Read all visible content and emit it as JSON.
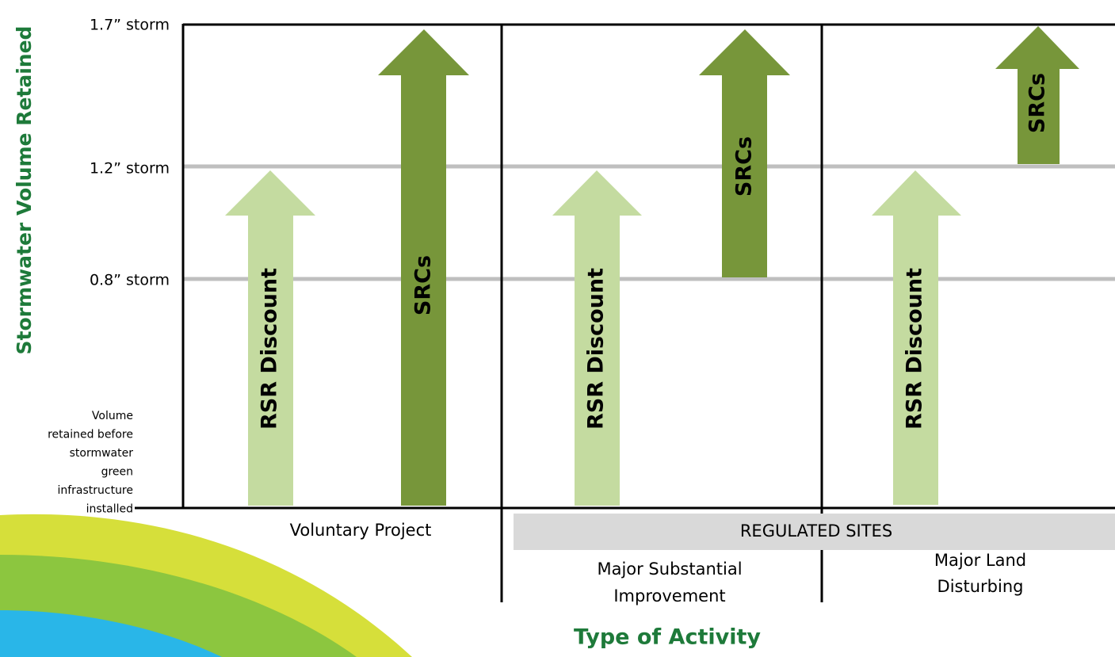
{
  "y_axis": {
    "title": "Stormwater Volume Retained",
    "levels": [
      "1.7” storm",
      "1.2” storm",
      "0.8” storm"
    ],
    "base_label": [
      "Volume",
      "retained before",
      "stormwater",
      "green",
      "infrastructure",
      "installed"
    ]
  },
  "arrows": {
    "rsr": "RSR Discount",
    "src": "SRCs"
  },
  "columns": {
    "voluntary": "Voluntary Project",
    "regulated": "REGULATED SITES",
    "major_substantial": [
      "Major Substantial",
      "Improvement"
    ],
    "major_land": [
      "Major Land",
      "Disturbing"
    ]
  },
  "x_axis": {
    "title": "Type of Activity"
  }
}
